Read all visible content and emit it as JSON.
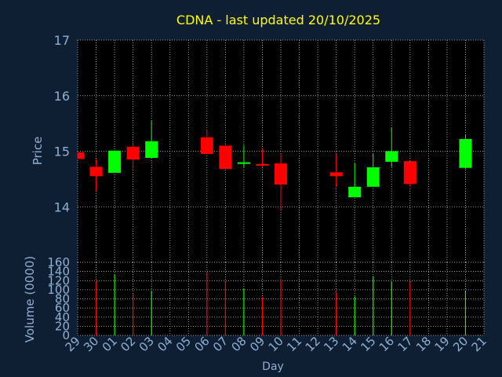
{
  "chart_data": {
    "type": "candlestick",
    "title": "CDNA - last updated 20/10/2025",
    "xlabel": "Day",
    "price_ylabel": "Price",
    "volume_ylabel": "Volume (0000)",
    "price_ylim": [
      13.0,
      17.0
    ],
    "price_ticks": [
      "14",
      "15",
      "16",
      "17"
    ],
    "volume_ylim": [
      0,
      160
    ],
    "volume_ticks": [
      "0",
      "20",
      "40",
      "60",
      "80",
      "100",
      "120",
      "140",
      "160"
    ],
    "x_tick_labels": [
      "29",
      "30",
      "01",
      "02",
      "03",
      "04",
      "05",
      "06",
      "07",
      "08",
      "09",
      "10",
      "11",
      "12",
      "13",
      "14",
      "15",
      "16",
      "17",
      "18",
      "19",
      "20",
      "21"
    ],
    "grid": true,
    "colors": {
      "up": "#00ff00",
      "down": "#ff0000",
      "grid": "#c8c8c8",
      "axis_text": "#8fb0d0",
      "title": "#ffff00"
    },
    "candles": [
      {
        "day": "29",
        "open": 14.98,
        "high": 14.98,
        "low": 14.86,
        "close": 14.86
      },
      {
        "day": "30",
        "open": 14.72,
        "high": 14.85,
        "low": 14.28,
        "close": 14.55
      },
      {
        "day": "01",
        "open": 14.61,
        "high": 15.01,
        "low": 14.61,
        "close": 15.01
      },
      {
        "day": "02",
        "open": 15.08,
        "high": 15.15,
        "low": 14.68,
        "close": 14.85
      },
      {
        "day": "03",
        "open": 14.88,
        "high": 15.55,
        "low": 14.88,
        "close": 15.18
      },
      {
        "day": "06",
        "open": 15.25,
        "high": 15.38,
        "low": 14.95,
        "close": 14.95
      },
      {
        "day": "07",
        "open": 15.1,
        "high": 15.1,
        "low": 14.68,
        "close": 14.68
      },
      {
        "day": "08",
        "open": 14.78,
        "high": 15.1,
        "low": 14.7,
        "close": 14.8
      },
      {
        "day": "09",
        "open": 14.77,
        "high": 15.05,
        "low": 14.72,
        "close": 14.74
      },
      {
        "day": "10",
        "open": 14.78,
        "high": 14.95,
        "low": 13.95,
        "close": 14.4
      },
      {
        "day": "13",
        "open": 14.62,
        "high": 14.95,
        "low": 14.35,
        "close": 14.55
      },
      {
        "day": "14",
        "open": 14.17,
        "high": 14.78,
        "low": 14.17,
        "close": 14.36
      },
      {
        "day": "15",
        "open": 14.36,
        "high": 14.95,
        "low": 14.36,
        "close": 14.71
      },
      {
        "day": "16",
        "open": 14.81,
        "high": 15.43,
        "low": 14.72,
        "close": 15.0
      },
      {
        "day": "17",
        "open": 14.82,
        "high": 14.82,
        "low": 14.35,
        "close": 14.41
      },
      {
        "day": "20",
        "open": 14.7,
        "high": 15.3,
        "low": 14.68,
        "close": 15.22
      }
    ],
    "volume": [
      {
        "day": "30",
        "value": 118,
        "direction": "down"
      },
      {
        "day": "01",
        "value": 133,
        "direction": "up"
      },
      {
        "day": "02",
        "value": 90,
        "direction": "down"
      },
      {
        "day": "03",
        "value": 97,
        "direction": "up"
      },
      {
        "day": "06",
        "value": 138,
        "direction": "down"
      },
      {
        "day": "07",
        "value": 118,
        "direction": "down"
      },
      {
        "day": "08",
        "value": 102,
        "direction": "up"
      },
      {
        "day": "09",
        "value": 84,
        "direction": "down"
      },
      {
        "day": "10",
        "value": 121,
        "direction": "down"
      },
      {
        "day": "13",
        "value": 94,
        "direction": "down"
      },
      {
        "day": "14",
        "value": 85,
        "direction": "up"
      },
      {
        "day": "15",
        "value": 130,
        "direction": "up"
      },
      {
        "day": "16",
        "value": 117,
        "direction": "up"
      },
      {
        "day": "17",
        "value": 117,
        "direction": "down"
      },
      {
        "day": "20",
        "value": 97,
        "direction": "up"
      }
    ]
  }
}
